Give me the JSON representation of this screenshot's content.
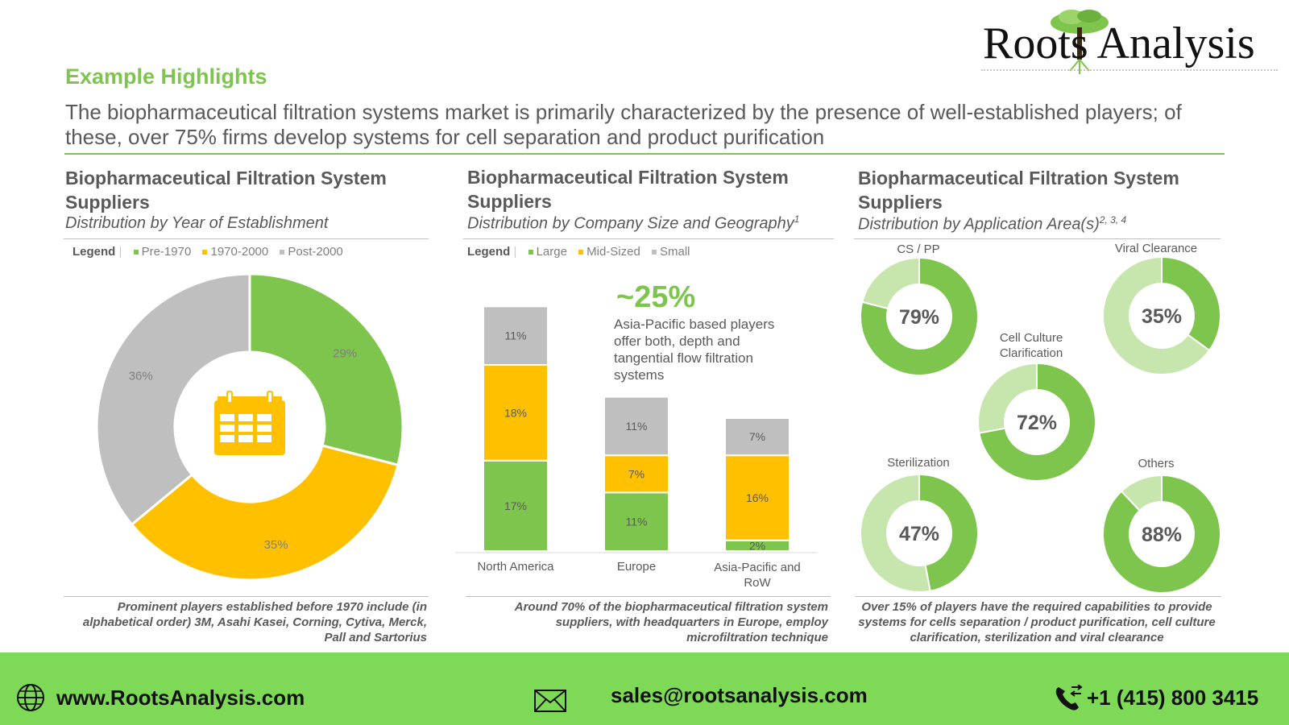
{
  "brand": {
    "name": "Roots Analysis"
  },
  "section_title": "Example Highlights",
  "intro": "The biopharmaceutical filtration systems market is primarily characterized by the presence of well-established players; of these, over 75% firms develop systems for cell separation and product purification",
  "panels": [
    {
      "title": "Biopharmaceutical Filtration System Suppliers",
      "subtitle": "Distribution by Year of Establishment",
      "footnote": "Prominent players established  before 1970 include (in alphabetical order) 3M, Asahi Kasei, Corning, Cytiva, Merck, Pall and Sartorius"
    },
    {
      "title": "Biopharmaceutical Filtration System Suppliers",
      "subtitle": "Distribution by Company Size and Geography",
      "sup": "1",
      "footnote": "Around 70% of the biopharmaceutical filtration system suppliers, with headquarters in Europe, employ microfiltration technique"
    },
    {
      "title": "Biopharmaceutical Filtration System Suppliers",
      "subtitle": "Distribution by Application Area(s)",
      "sup": "2, 3, 4",
      "footnote": "Over 15% of  players have the required capabilities to provide systems  for cells separation  / product purification, cell culture clarification, sterilization and viral clearance"
    }
  ],
  "legend_label": "Legend",
  "colors": {
    "green": "#7ec54d",
    "yellow": "#ffc000",
    "gray": "#bfbfbf",
    "light_green": "#c6e6ad",
    "footer": "#7ed957",
    "accent": "#7ec54d"
  },
  "chart_data": [
    {
      "type": "pie",
      "title": "Distribution by Year of Establishment",
      "labels": [
        "Pre-1970",
        "1970-2000",
        "Post-2000"
      ],
      "values": [
        29,
        35,
        36
      ],
      "value_labels": [
        "29%",
        "35%",
        "36%"
      ],
      "center_icon": "calendar-icon"
    },
    {
      "type": "bar",
      "stacked": true,
      "title": "Distribution by Company Size and Geography",
      "categories": [
        "North America",
        "Europe",
        "Asia-Pacific and RoW"
      ],
      "series": [
        {
          "name": "Large",
          "values": [
            17,
            11,
            2
          ]
        },
        {
          "name": "Mid-Sized",
          "values": [
            18,
            7,
            16
          ]
        },
        {
          "name": "Small",
          "values": [
            11,
            11,
            7
          ]
        }
      ],
      "ylim": [
        0,
        48
      ],
      "annotation": {
        "value": "~25%",
        "text": "Asia-Pacific based players offer both, depth and tangential flow filtration systems"
      }
    },
    {
      "type": "pie",
      "title": "Distribution by Application Area(s)",
      "items": [
        {
          "label": "CS / PP",
          "value": 79
        },
        {
          "label": "Viral Clearance",
          "value": 35
        },
        {
          "label": "Cell Culture Clarification",
          "value": 72
        },
        {
          "label": "Sterilization",
          "value": 47
        },
        {
          "label": "Others",
          "value": 88
        }
      ]
    }
  ],
  "footer": {
    "website": "www.RootsAnalysis.com",
    "email": "sales@rootsanalysis.com",
    "phone": "+1 (415) 800 3415"
  }
}
